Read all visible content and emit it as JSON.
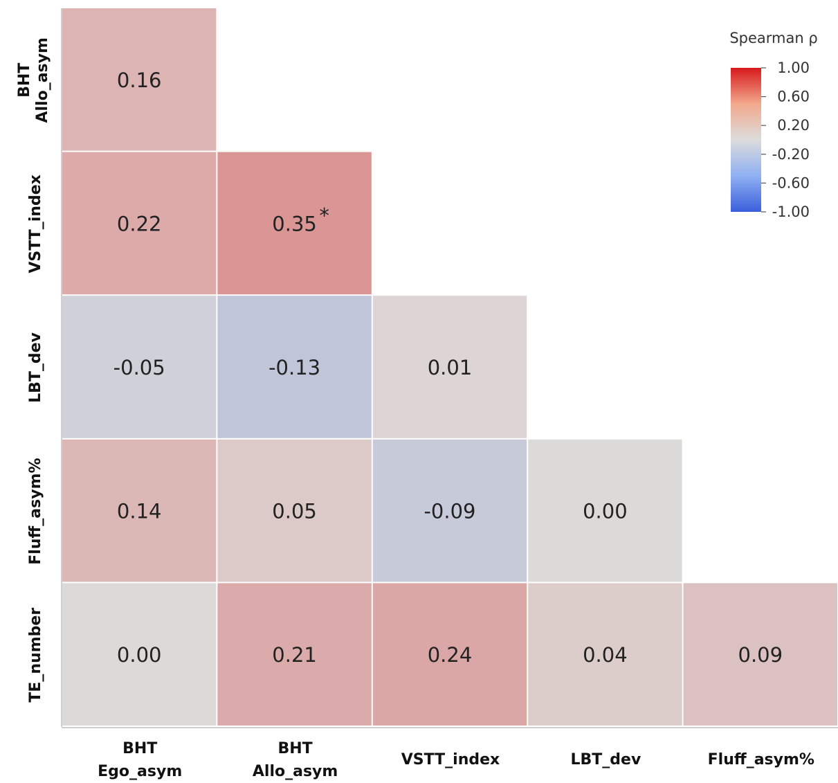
{
  "chart_data": {
    "type": "heatmap",
    "title": "",
    "rows": [
      "BHT\nAllo_asym",
      "VSTT_index",
      "LBT_dev",
      "Fluff_asym%",
      "TE_number"
    ],
    "columns": [
      "BHT\nEgo_asym",
      "BHT\nAllo_asym",
      "VSTT_index",
      "LBT_dev",
      "Fluff_asym%"
    ],
    "cells": [
      {
        "row": 0,
        "col": 0,
        "value": 0.16,
        "label": "0.16",
        "sig": ""
      },
      {
        "row": 1,
        "col": 0,
        "value": 0.22,
        "label": "0.22",
        "sig": ""
      },
      {
        "row": 1,
        "col": 1,
        "value": 0.35,
        "label": "0.35",
        "sig": "*"
      },
      {
        "row": 2,
        "col": 0,
        "value": -0.05,
        "label": "-0.05",
        "sig": ""
      },
      {
        "row": 2,
        "col": 1,
        "value": -0.13,
        "label": "-0.13",
        "sig": ""
      },
      {
        "row": 2,
        "col": 2,
        "value": 0.01,
        "label": "0.01",
        "sig": ""
      },
      {
        "row": 3,
        "col": 0,
        "value": 0.14,
        "label": "0.14",
        "sig": ""
      },
      {
        "row": 3,
        "col": 1,
        "value": 0.05,
        "label": "0.05",
        "sig": ""
      },
      {
        "row": 3,
        "col": 2,
        "value": -0.09,
        "label": "-0.09",
        "sig": ""
      },
      {
        "row": 3,
        "col": 3,
        "value": 0.0,
        "label": "0.00",
        "sig": ""
      },
      {
        "row": 4,
        "col": 0,
        "value": 0.0,
        "label": "0.00",
        "sig": ""
      },
      {
        "row": 4,
        "col": 1,
        "value": 0.21,
        "label": "0.21",
        "sig": ""
      },
      {
        "row": 4,
        "col": 2,
        "value": 0.24,
        "label": "0.24",
        "sig": ""
      },
      {
        "row": 4,
        "col": 3,
        "value": 0.04,
        "label": "0.04",
        "sig": ""
      },
      {
        "row": 4,
        "col": 4,
        "value": 0.09,
        "label": "0.09",
        "sig": ""
      }
    ],
    "legend": {
      "title": "Spearman ρ",
      "placement": "top-right",
      "ticks": [
        "1.00",
        "0.60",
        "0.20",
        "-0.20",
        "-0.60",
        "-1.00"
      ],
      "range": [
        -1.0,
        1.0
      ],
      "colors": {
        "low": "#3b5fdc",
        "mid": "#dcdcdc",
        "high": "#d7191c"
      }
    }
  }
}
